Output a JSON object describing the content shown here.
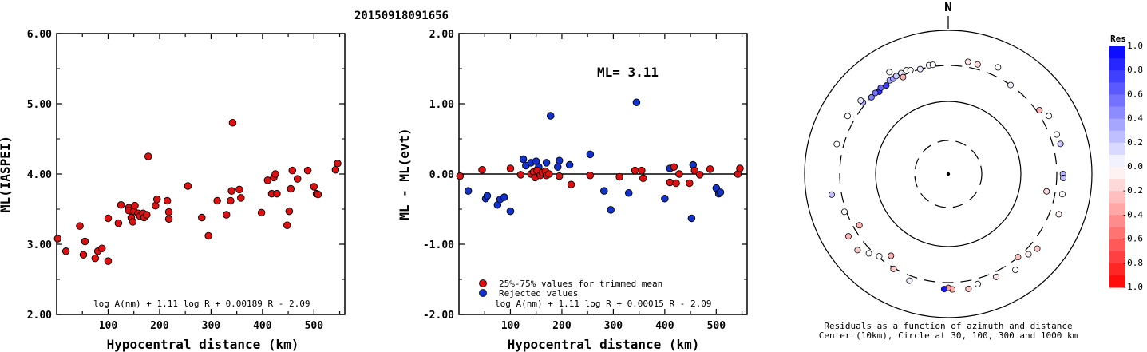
{
  "title": "20150918091656",
  "chart_data": [
    {
      "type": "scatter",
      "name": "ml-vs-distance",
      "xlabel": "Hypocentral distance (km)",
      "ylabel": "ML(IASPEI)",
      "xlim": [
        0,
        560
      ],
      "ylim": [
        2.0,
        6.0
      ],
      "xticks": [
        "100",
        "200",
        "300",
        "400",
        "500"
      ],
      "yticks": [
        "2.00",
        "3.00",
        "4.00",
        "5.00",
        "6.00"
      ],
      "formula": "log A(nm) + 1.11 log R + 0.00189 R - 2.09",
      "color": "#dd1111",
      "points": [
        [
          2,
          3.08
        ],
        [
          18,
          2.9
        ],
        [
          45,
          3.26
        ],
        [
          55,
          3.04
        ],
        [
          52,
          2.85
        ],
        [
          75,
          2.8
        ],
        [
          80,
          2.9
        ],
        [
          88,
          2.94
        ],
        [
          100,
          3.37
        ],
        [
          100,
          2.76
        ],
        [
          125,
          3.56
        ],
        [
          120,
          3.3
        ],
        [
          140,
          3.52
        ],
        [
          140,
          3.48
        ],
        [
          145,
          3.38
        ],
        [
          148,
          3.32
        ],
        [
          150,
          3.47
        ],
        [
          152,
          3.55
        ],
        [
          158,
          3.44
        ],
        [
          162,
          3.4
        ],
        [
          168,
          3.44
        ],
        [
          170,
          3.38
        ],
        [
          175,
          3.42
        ],
        [
          178,
          4.25
        ],
        [
          192,
          3.55
        ],
        [
          195,
          3.64
        ],
        [
          215,
          3.62
        ],
        [
          218,
          3.46
        ],
        [
          218,
          3.36
        ],
        [
          255,
          3.83
        ],
        [
          282,
          3.38
        ],
        [
          295,
          3.12
        ],
        [
          312,
          3.62
        ],
        [
          330,
          3.42
        ],
        [
          338,
          3.62
        ],
        [
          340,
          3.76
        ],
        [
          342,
          4.73
        ],
        [
          355,
          3.78
        ],
        [
          358,
          3.66
        ],
        [
          398,
          3.45
        ],
        [
          410,
          3.91
        ],
        [
          418,
          3.72
        ],
        [
          422,
          3.95
        ],
        [
          425,
          4.0
        ],
        [
          428,
          3.72
        ],
        [
          448,
          3.27
        ],
        [
          452,
          3.47
        ],
        [
          455,
          3.79
        ],
        [
          458,
          4.05
        ],
        [
          468,
          3.93
        ],
        [
          488,
          4.05
        ],
        [
          500,
          3.82
        ],
        [
          505,
          3.72
        ],
        [
          508,
          3.71
        ],
        [
          542,
          4.06
        ],
        [
          546,
          4.15
        ]
      ]
    },
    {
      "type": "scatter",
      "name": "residual-vs-distance",
      "xlabel": "Hypocentral distance (km)",
      "ylabel": "ML - ML(evt)",
      "xlim": [
        0,
        560
      ],
      "ylim": [
        -2.0,
        2.0
      ],
      "xticks": [
        "100",
        "200",
        "300",
        "400",
        "500"
      ],
      "yticks": [
        "-2.00",
        "-1.00",
        "0.00",
        "1.00",
        "2.00"
      ],
      "annotation": "ML= 3.11",
      "formula": "log A(nm) + 1.11 log R + 0.00015 R - 2.09",
      "legend": [
        {
          "label": "25%-75% values for trimmed mean",
          "color": "#dd1111"
        },
        {
          "label": "Rejected values",
          "color": "#1133cc"
        }
      ],
      "trimmed": [
        [
          2,
          -0.03
        ],
        [
          45,
          0.06
        ],
        [
          100,
          0.08
        ],
        [
          120,
          -0.01
        ],
        [
          140,
          0.0
        ],
        [
          145,
          0.03
        ],
        [
          148,
          -0.05
        ],
        [
          152,
          0.05
        ],
        [
          158,
          -0.02
        ],
        [
          162,
          0.02
        ],
        [
          168,
          0.04
        ],
        [
          170,
          -0.02
        ],
        [
          175,
          0.0
        ],
        [
          195,
          -0.03
        ],
        [
          218,
          -0.15
        ],
        [
          255,
          -0.02
        ],
        [
          312,
          -0.04
        ],
        [
          342,
          0.05
        ],
        [
          355,
          0.05
        ],
        [
          358,
          -0.06
        ],
        [
          410,
          -0.12
        ],
        [
          418,
          0.1
        ],
        [
          422,
          -0.13
        ],
        [
          428,
          0.0
        ],
        [
          448,
          -0.13
        ],
        [
          458,
          0.05
        ],
        [
          468,
          -0.01
        ],
        [
          488,
          0.07
        ],
        [
          542,
          0.0
        ],
        [
          546,
          0.08
        ]
      ],
      "rejected": [
        [
          18,
          -0.24
        ],
        [
          52,
          -0.35
        ],
        [
          55,
          -0.31
        ],
        [
          75,
          -0.44
        ],
        [
          80,
          -0.36
        ],
        [
          88,
          -0.33
        ],
        [
          100,
          -0.53
        ],
        [
          125,
          0.21
        ],
        [
          130,
          0.12
        ],
        [
          140,
          0.16
        ],
        [
          150,
          0.18
        ],
        [
          152,
          0.06
        ],
        [
          155,
          0.1
        ],
        [
          170,
          0.16
        ],
        [
          178,
          0.83
        ],
        [
          192,
          0.1
        ],
        [
          195,
          0.19
        ],
        [
          215,
          0.13
        ],
        [
          255,
          0.28
        ],
        [
          282,
          -0.24
        ],
        [
          295,
          -0.51
        ],
        [
          330,
          -0.27
        ],
        [
          345,
          1.02
        ],
        [
          400,
          -0.35
        ],
        [
          410,
          0.08
        ],
        [
          452,
          -0.63
        ],
        [
          455,
          0.13
        ],
        [
          500,
          -0.2
        ],
        [
          505,
          -0.28
        ],
        [
          508,
          -0.26
        ]
      ]
    },
    {
      "type": "polar-scatter",
      "name": "azimuth-residuals",
      "north_label": "N",
      "caption": "Residuals as a function of azimuth and distance",
      "caption2": "Center (10km), Circle at 30, 100, 300 and 1000 km",
      "colorbar_title": "Res",
      "colorbar_ticks": [
        "1.0",
        "0.8",
        "0.6",
        "0.4",
        "0.2",
        "0.0",
        "-0.2",
        "-0.4",
        "-0.6",
        "-0.8",
        "-1.0"
      ],
      "points": [
        [
          350,
          320,
          0.05
        ],
        [
          352,
          318,
          0.0
        ],
        [
          10,
          360,
          -0.1
        ],
        [
          15,
          355,
          -0.15
        ],
        [
          35,
          300,
          0.05
        ],
        [
          60,
          390,
          0.0
        ],
        [
          70,
          380,
          0.0
        ],
        [
          75,
          390,
          0.2
        ],
        [
          90,
          370,
          0.3
        ],
        [
          92,
          375,
          0.25
        ],
        [
          100,
          385,
          0.0
        ],
        [
          100,
          230,
          -0.15
        ],
        [
          110,
          410,
          -0.05
        ],
        [
          130,
          390,
          -0.2
        ],
        [
          135,
          355,
          -0.05
        ],
        [
          140,
          300,
          -0.25
        ],
        [
          145,
          400,
          0.0
        ],
        [
          155,
          355,
          -0.1
        ],
        [
          165,
          360,
          0.0
        ],
        [
          170,
          395,
          -0.2
        ],
        [
          178,
          380,
          -0.3
        ],
        [
          180,
          360,
          -0.4
        ],
        [
          182,
          375,
          0.9
        ],
        [
          200,
          355,
          0.05
        ],
        [
          210,
          310,
          -0.2
        ],
        [
          215,
          230,
          -0.3
        ],
        [
          220,
          290,
          0.0
        ],
        [
          225,
          340,
          0.0
        ],
        [
          260,
          420,
          0.25
        ],
        [
          250,
          320,
          0.0
        ],
        [
          240,
          250,
          -0.3
        ],
        [
          285,
          380,
          0.0
        ],
        [
          300,
          390,
          0.0
        ],
        [
          310,
          330,
          0.35
        ],
        [
          315,
          300,
          0.5
        ],
        [
          320,
          295,
          0.7
        ],
        [
          320,
          290,
          0.85
        ],
        [
          318,
          305,
          0.55
        ],
        [
          322,
          310,
          0.6
        ],
        [
          325,
          295,
          0.75
        ],
        [
          328,
          320,
          0.3
        ],
        [
          330,
          315,
          0.4
        ],
        [
          332,
          325,
          0.2
        ],
        [
          335,
          330,
          0.1
        ],
        [
          338,
          335,
          0.0
        ],
        [
          335,
          285,
          -0.3
        ],
        [
          310,
          365,
          0.1
        ],
        [
          330,
          410,
          0.0
        ],
        [
          340,
          320,
          0.0
        ],
        [
          345,
          300,
          0.1
        ],
        [
          25,
          410,
          0.0
        ],
        [
          55,
          330,
          -0.3
        ],
        [
          230,
          420,
          -0.2
        ],
        [
          238,
          410,
          -0.3
        ]
      ]
    }
  ]
}
